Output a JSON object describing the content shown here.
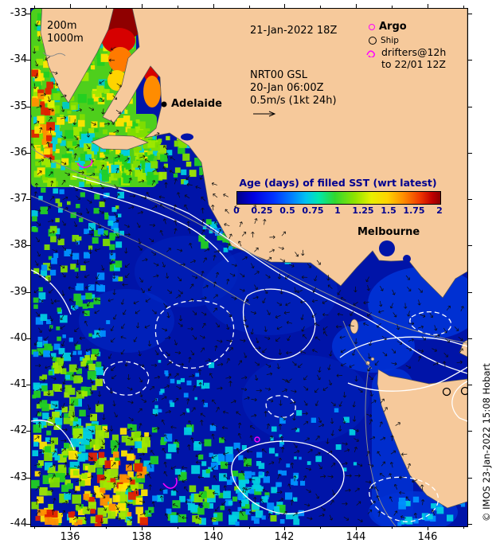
{
  "figure": {
    "depth_legend": [
      "200m",
      "1000m"
    ],
    "datetime_label": "21-Jan-2022 18Z",
    "obs_legend": {
      "argo": "Argo",
      "ship": "Ship",
      "drifters_1": "drifters@12h",
      "drifters_2": "to 22/01 12Z"
    },
    "gsl_legend": {
      "l1": "NRT00 GSL",
      "l2": "20-Jan 06:00Z",
      "l3": "0.5m/s (1kt 24h)"
    },
    "cities": [
      {
        "name": "Adelaide"
      },
      {
        "name": "Melbourne"
      }
    ],
    "credit": "© IMOS 23-Jan-2022 15:08 Hobart"
  },
  "colorbar": {
    "title": "Age (days) of filled SST (wrt latest)",
    "tick_labels": [
      "0",
      "0.25",
      "0.5",
      "0.75",
      "1",
      "1.25",
      "1.5",
      "1.75",
      "2"
    ],
    "range": [
      0,
      2
    ]
  },
  "axes": {
    "lat": [
      "-33",
      "-34",
      "-35",
      "-36",
      "-37",
      "-38",
      "-39",
      "-40",
      "-41",
      "-42",
      "-43",
      "-44"
    ],
    "lon": [
      "136",
      "138",
      "140",
      "142",
      "144",
      "146"
    ]
  },
  "colors": {
    "land": "#f6c99b",
    "ocean_age0": "#0014a8",
    "contour_sla": "#ffffff",
    "contour_bathy": "#8a8a8a",
    "drifter": "#ff00ff",
    "colorbar_text": "#00008f"
  }
}
